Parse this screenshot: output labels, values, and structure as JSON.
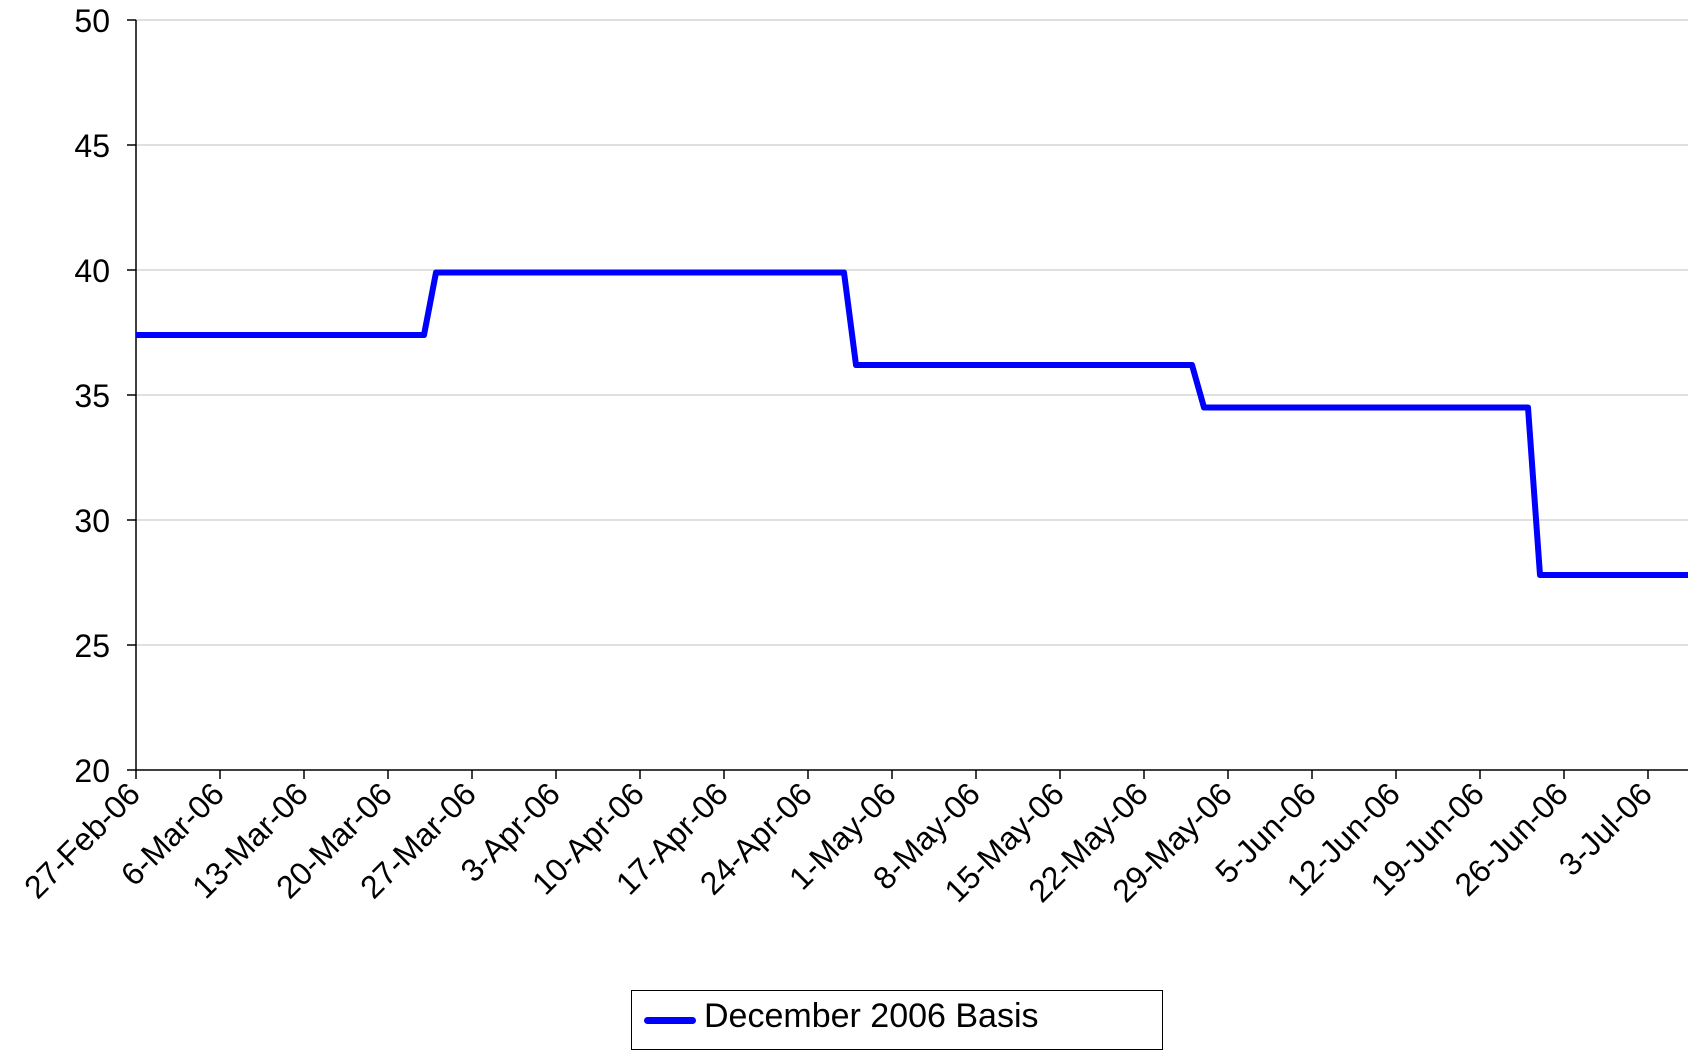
{
  "chart_data": {
    "type": "line",
    "ylim": [
      20,
      50
    ],
    "yticks": [
      20,
      25,
      30,
      35,
      40,
      45,
      50
    ],
    "xticks": [
      "27-Feb-06",
      "6-Mar-06",
      "13-Mar-06",
      "20-Mar-06",
      "27-Mar-06",
      "3-Apr-06",
      "10-Apr-06",
      "17-Apr-06",
      "24-Apr-06",
      "1-May-06",
      "8-May-06",
      "15-May-06",
      "22-May-06",
      "29-May-06",
      "5-Jun-06",
      "12-Jun-06",
      "19-Jun-06",
      "26-Jun-06",
      "3-Jul-06"
    ],
    "grid": "horizontal",
    "legend_position": "bottom",
    "colors": {
      "series": "#0000ff",
      "axis": "#000000",
      "grid": "#c0c0c0"
    },
    "series": [
      {
        "name": "December 2006 Basis",
        "points": [
          {
            "x": "27-Feb-06",
            "y": 37.4
          },
          {
            "x": "23-Mar-06",
            "y": 37.4
          },
          {
            "x": "24-Mar-06",
            "y": 39.9
          },
          {
            "x": "27-Apr-06",
            "y": 39.9
          },
          {
            "x": "28-Apr-06",
            "y": 36.2
          },
          {
            "x": "26-May-06",
            "y": 36.2
          },
          {
            "x": "27-May-06",
            "y": 34.5
          },
          {
            "x": "23-Jun-06",
            "y": 34.5
          },
          {
            "x": "24-Jun-06",
            "y": 27.8
          },
          {
            "x": "7-Jul-06",
            "y": 27.8
          }
        ]
      }
    ]
  }
}
